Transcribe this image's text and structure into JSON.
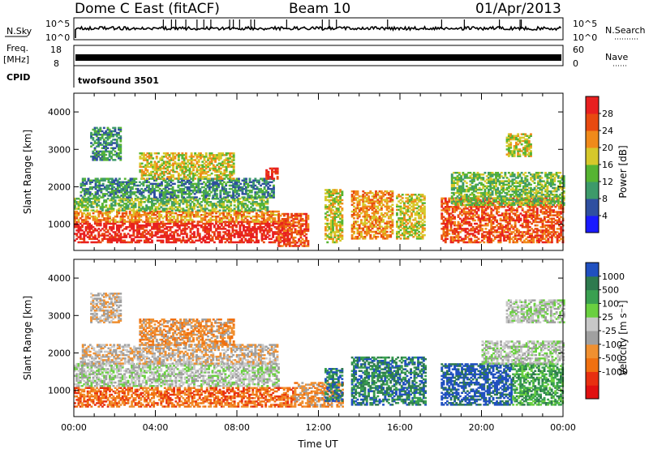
{
  "header": {
    "station": "Dome C East (fitACF)",
    "beam": "Beam 10",
    "date": "01/Apr/2013"
  },
  "left_labels": {
    "nsky": "N.Sky",
    "freq": "Freq.",
    "freq_unit": "[MHz]",
    "cpid": "CPID"
  },
  "right_labels": {
    "nsearch": "N.Search",
    "nave": "Nave"
  },
  "noise_panel": {
    "ticks_left": [
      "10^5",
      "10^0"
    ],
    "ticks_right": [
      "10^5",
      "10^0"
    ]
  },
  "freq_panel": {
    "ticks_left": [
      "18",
      "8"
    ],
    "ticks_right": [
      "60",
      "0"
    ]
  },
  "cpid_panel": {
    "text": "twofsound 3501"
  },
  "colors": {
    "power": [
      "#1a1aff",
      "#2f4fa0",
      "#3d9a6a",
      "#56b432",
      "#d6c82a",
      "#f08a1a",
      "#e84a10",
      "#e82020"
    ],
    "velocity": [
      "#2050c0",
      "#2e7a4e",
      "#3aa050",
      "#6ad040",
      "#c8c8c8",
      "#a0a0a0",
      "#f09030",
      "#f07010",
      "#e83010",
      "#e01010"
    ]
  },
  "chart_data": [
    {
      "type": "heatmap",
      "name": "power",
      "ylabel": "Slant Range [km]",
      "ylim": [
        300,
        4500
      ],
      "yticks": [
        "1000",
        "2000",
        "3000",
        "4000"
      ],
      "colorbar": {
        "label": "Power [dB]",
        "ticks": [
          "4",
          "8",
          "12",
          "16",
          "20",
          "24",
          "28"
        ]
      },
      "blobs": [
        {
          "t0": 0.0,
          "t1": 10.6,
          "r0": 500,
          "r1": 1050,
          "v": 7
        },
        {
          "t0": 0.0,
          "t1": 10.0,
          "r0": 1050,
          "r1": 1350,
          "v": 5
        },
        {
          "t0": 0.0,
          "t1": 9.5,
          "r0": 1350,
          "r1": 1700,
          "v": 3
        },
        {
          "t0": 0.3,
          "t1": 9.8,
          "r0": 1700,
          "r1": 2200,
          "v": 2
        },
        {
          "t0": 3.2,
          "t1": 7.8,
          "r0": 2200,
          "r1": 2900,
          "v": 4
        },
        {
          "t0": 0.8,
          "t1": 2.3,
          "r0": 2700,
          "r1": 3600,
          "v": 2
        },
        {
          "t0": 9.4,
          "t1": 10.0,
          "r0": 2200,
          "r1": 2500,
          "v": 7
        },
        {
          "t0": 10.0,
          "t1": 11.5,
          "r0": 400,
          "r1": 1300,
          "v": 6
        },
        {
          "t0": 12.3,
          "t1": 13.2,
          "r0": 500,
          "r1": 1900,
          "v": 4
        },
        {
          "t0": 13.6,
          "t1": 15.6,
          "r0": 600,
          "r1": 1900,
          "v": 5
        },
        {
          "t0": 15.8,
          "t1": 17.2,
          "r0": 600,
          "r1": 1800,
          "v": 4
        },
        {
          "t0": 18.0,
          "t1": 24.0,
          "r0": 500,
          "r1": 1700,
          "v": 6
        },
        {
          "t0": 18.5,
          "t1": 24.0,
          "r0": 1500,
          "r1": 2400,
          "v": 3
        },
        {
          "t0": 21.2,
          "t1": 22.4,
          "r0": 2800,
          "r1": 3400,
          "v": 4
        }
      ]
    },
    {
      "type": "heatmap",
      "name": "velocity",
      "ylabel": "Slant Range [km]",
      "xlabel": "Time UT",
      "ylim": [
        300,
        4500
      ],
      "yticks": [
        "1000",
        "2000",
        "3000",
        "4000"
      ],
      "xticks": [
        "00:00",
        "04:00",
        "08:00",
        "12:00",
        "16:00",
        "20:00",
        "00:00"
      ],
      "colorbar": {
        "label": "Velocity [m s⁻¹]",
        "ticks": [
          "1000",
          "500",
          "100",
          "25",
          "-25",
          "-100",
          "-500",
          "-1000"
        ]
      },
      "blobs": [
        {
          "t0": 0.0,
          "t1": 10.8,
          "r0": 550,
          "r1": 1050,
          "v": 7
        },
        {
          "t0": 10.8,
          "t1": 13.2,
          "r0": 550,
          "r1": 1200,
          "v": 6
        },
        {
          "t0": 0.0,
          "t1": 10.0,
          "r0": 1100,
          "r1": 1700,
          "v": 4
        },
        {
          "t0": 0.3,
          "t1": 10.0,
          "r0": 1700,
          "r1": 2200,
          "v": 5
        },
        {
          "t0": 3.2,
          "t1": 7.8,
          "r0": 2200,
          "r1": 2900,
          "v": 6
        },
        {
          "t0": 0.8,
          "t1": 2.3,
          "r0": 2800,
          "r1": 3600,
          "v": 5
        },
        {
          "t0": 12.3,
          "t1": 13.2,
          "r0": 700,
          "r1": 1600,
          "v": 1
        },
        {
          "t0": 13.6,
          "t1": 17.2,
          "r0": 600,
          "r1": 1900,
          "v": 1
        },
        {
          "t0": 18.0,
          "t1": 21.5,
          "r0": 600,
          "r1": 1700,
          "v": 0
        },
        {
          "t0": 21.5,
          "t1": 24.0,
          "r0": 600,
          "r1": 1700,
          "v": 2
        },
        {
          "t0": 20.0,
          "t1": 24.0,
          "r0": 1700,
          "r1": 2300,
          "v": 4
        },
        {
          "t0": 21.2,
          "t1": 24.0,
          "r0": 2800,
          "r1": 3400,
          "v": 4
        }
      ]
    }
  ]
}
